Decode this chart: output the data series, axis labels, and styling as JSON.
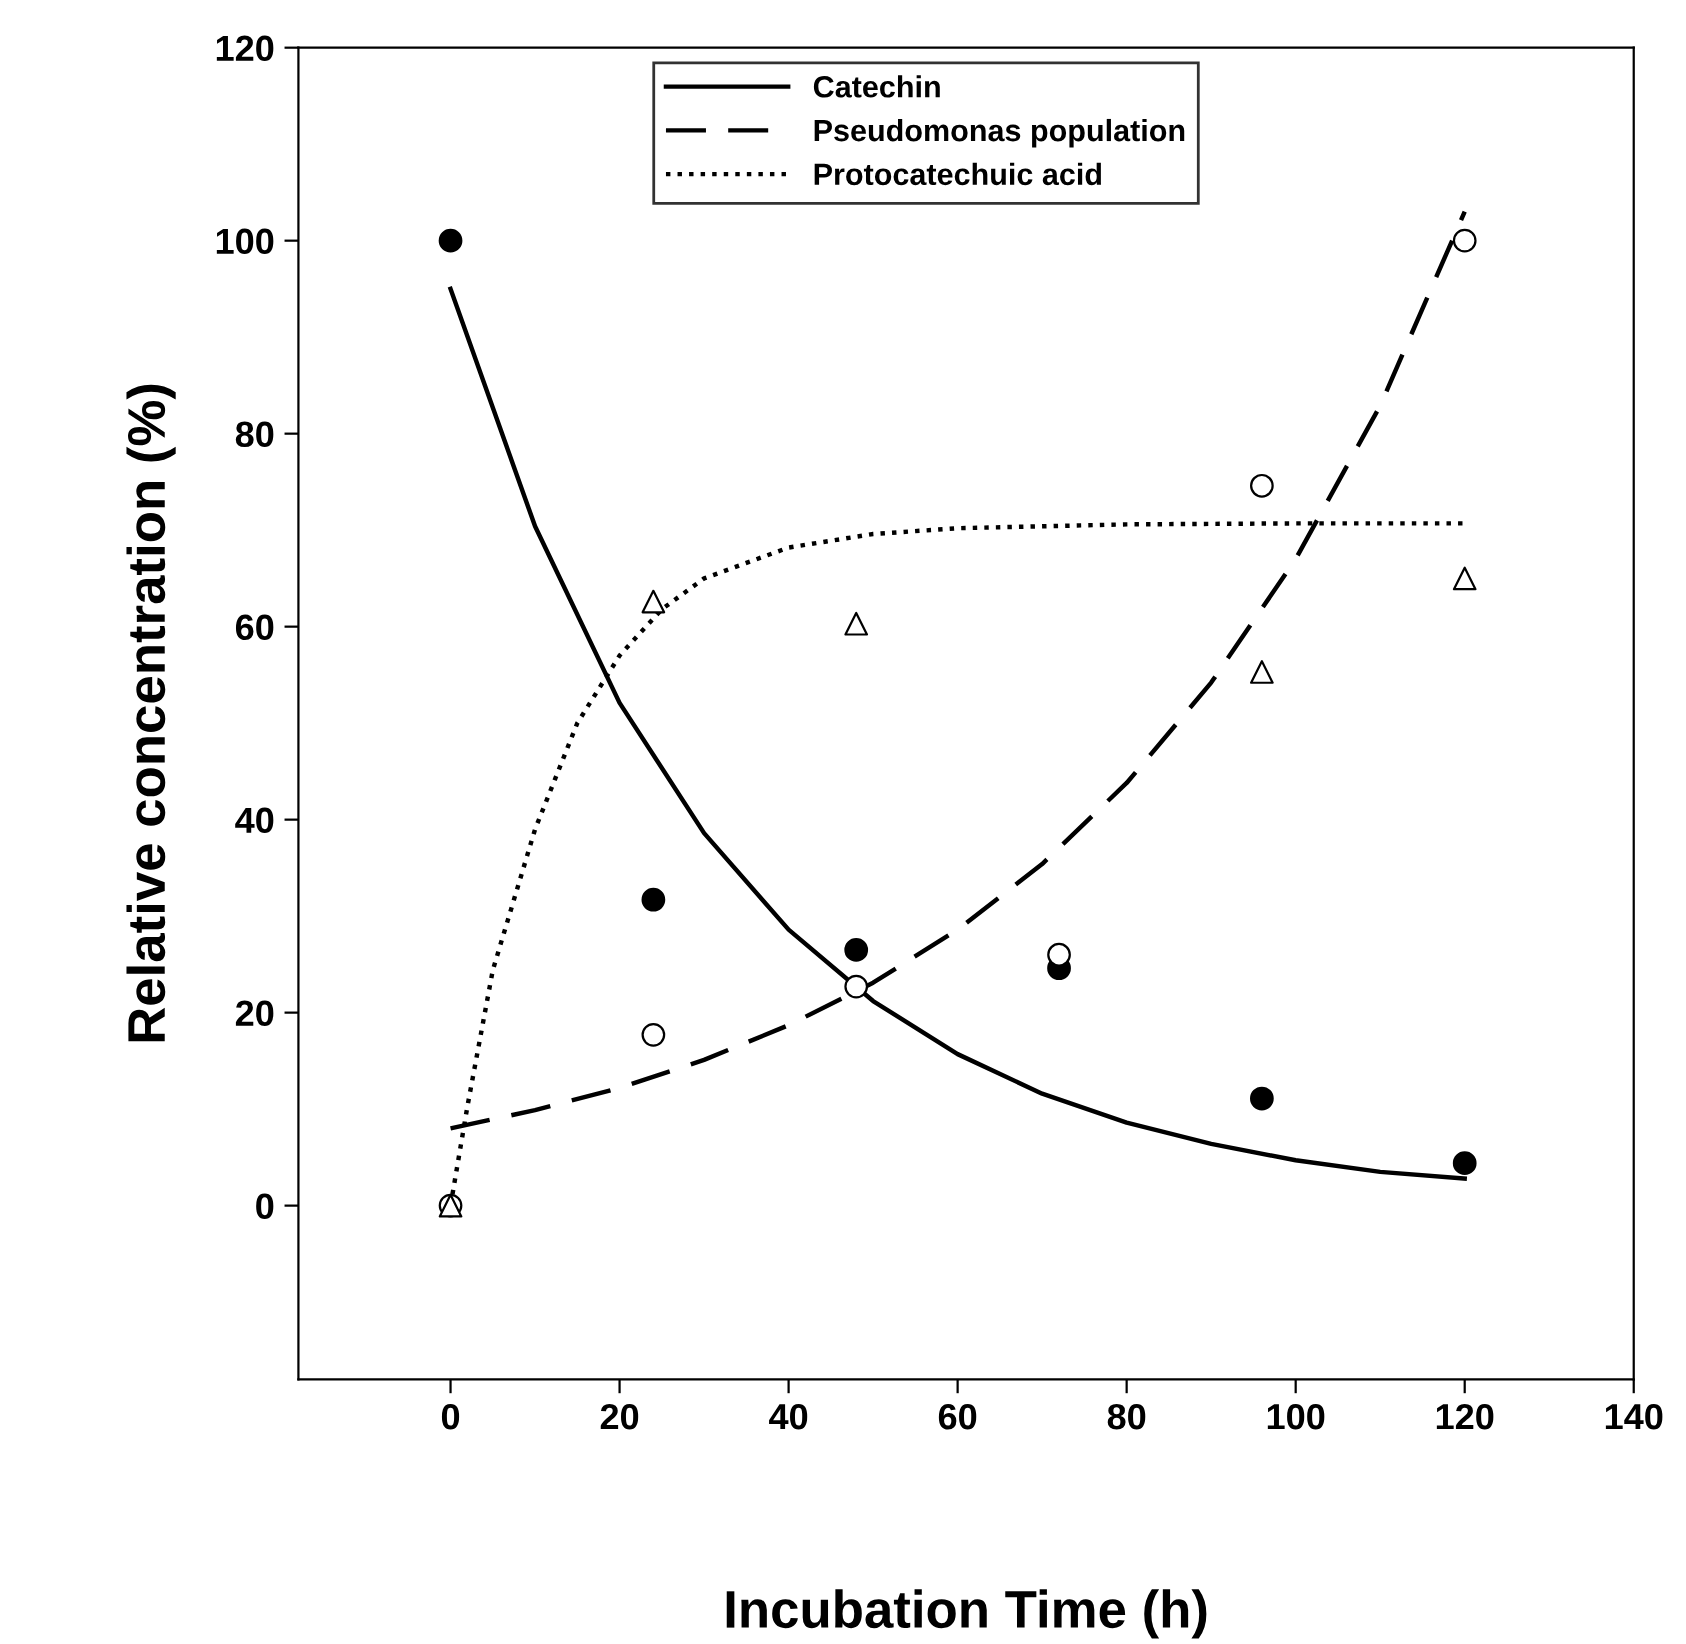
{
  "chart_data": {
    "type": "line",
    "xlabel": "Incubation Time (h)",
    "ylabel": "Relative concentration (%)",
    "xlim": [
      -18,
      140
    ],
    "xticks": [
      0,
      20,
      40,
      60,
      80,
      100,
      120,
      140
    ],
    "ylim": [
      -18,
      120
    ],
    "yticks": [
      0,
      20,
      40,
      60,
      80,
      100,
      120
    ],
    "grid": false,
    "legend": "top",
    "series": [
      {
        "name": "Catechin",
        "line_style": "solid",
        "color": "#000000",
        "x": [
          0,
          10,
          20,
          30,
          40,
          50,
          60,
          70,
          80,
          90,
          100,
          110,
          120
        ],
        "values": [
          95,
          70.4,
          52.1,
          38.6,
          28.6,
          21.2,
          15.7,
          11.6,
          8.6,
          6.4,
          4.7,
          3.5,
          2.8
        ]
      },
      {
        "name": "Pseudomonas population",
        "line_style": "dashed",
        "color": "#000000",
        "x": [
          0,
          10,
          20,
          30,
          40,
          50,
          60,
          70,
          80,
          90,
          100,
          110,
          120
        ],
        "values": [
          8,
          9.9,
          12.2,
          15.1,
          18.7,
          23.1,
          28.6,
          35.4,
          43.8,
          54.2,
          67,
          82.9,
          103
        ]
      },
      {
        "name": "Protocatechuic acid",
        "line_style": "dotted",
        "color": "#000000",
        "x": [
          0,
          2,
          5,
          10,
          15,
          20,
          25,
          30,
          40,
          50,
          60,
          80,
          100,
          120
        ],
        "values": [
          0,
          10.3,
          24.4,
          39,
          50,
          57,
          61.8,
          65,
          68.2,
          69.6,
          70.2,
          70.6,
          70.7,
          70.7
        ]
      },
      {
        "type": "scatter",
        "marker": "circle",
        "color": "#000000",
        "x": [
          0,
          24,
          48,
          72,
          96,
          120
        ],
        "values": [
          100,
          31.7,
          26.5,
          24.6,
          11.1,
          4.4
        ]
      },
      {
        "type": "scatter",
        "marker": "circle",
        "color": "#ffffff",
        "x": [
          0,
          24,
          48,
          72,
          96,
          120
        ],
        "values": [
          0,
          17.7,
          22.7,
          26,
          74.6,
          100
        ]
      },
      {
        "type": "scatter",
        "marker": "triangle",
        "color": "#ffffff",
        "x": [
          0,
          24,
          48,
          96,
          120
        ],
        "values": [
          0,
          62.6,
          60.3,
          55.3,
          65
        ]
      }
    ]
  }
}
